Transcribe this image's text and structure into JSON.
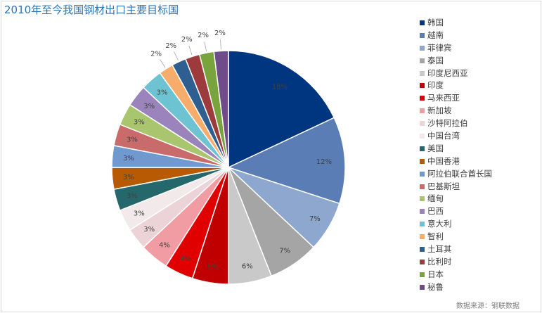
{
  "chart_data": {
    "type": "pie",
    "title": "2010年至今我国钢材出口主要目标国",
    "categories": [
      "韩国",
      "越南",
      "菲律宾",
      "泰国",
      "印度尼西亚",
      "印度",
      "马来西亚",
      "新加坡",
      "沙特阿拉伯",
      "中国台湾",
      "美国",
      "中国香港",
      "阿拉伯联合酋长国",
      "巴基斯坦",
      "缅甸",
      "巴西",
      "意大利",
      "智利",
      "土耳其",
      "比利时",
      "日本",
      "秘鲁"
    ],
    "values": [
      18,
      12,
      7,
      7,
      6,
      5,
      4,
      4,
      3,
      3,
      3,
      3,
      3,
      3,
      3,
      3,
      3,
      2,
      2,
      2,
      2,
      2
    ],
    "data_labels": [
      "18%",
      "12%",
      "7%",
      "7%",
      "6%",
      "5%",
      "4%",
      "4%",
      "3%",
      "3%",
      "3%",
      "3%",
      "3%",
      "3%",
      "3%",
      "3%",
      "3%",
      "2%",
      "2%",
      "2%",
      "2%",
      "2%"
    ],
    "colors": [
      "#003580",
      "#5a7db5",
      "#8ea7cf",
      "#a5a5a5",
      "#c9c9c9",
      "#c00000",
      "#e00000",
      "#f19ba2",
      "#ecd3d8",
      "#f2eaea",
      "#24686c",
      "#b85a04",
      "#6f99cf",
      "#c96b6b",
      "#a9c66f",
      "#9a84bb",
      "#6ec3d2",
      "#f6ad6b",
      "#2f5f91",
      "#9d3a3c",
      "#79a33d",
      "#6e4c8a"
    ],
    "legend": "right"
  },
  "source_note": "数据来源：钢联数据"
}
